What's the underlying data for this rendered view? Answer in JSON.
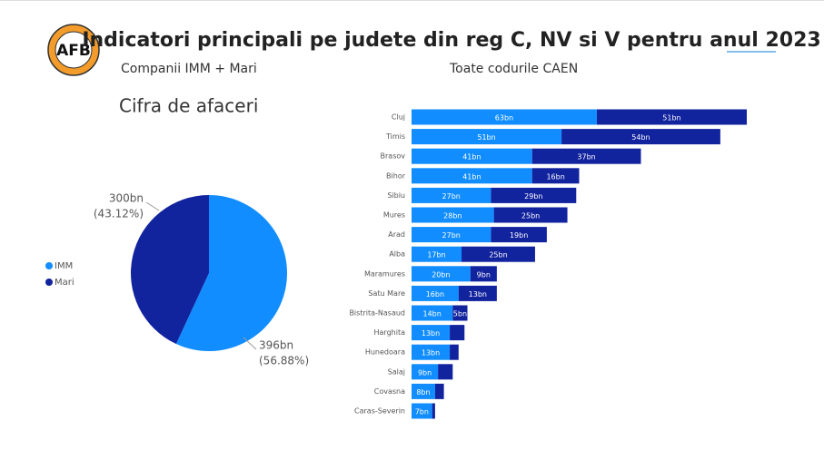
{
  "header": {
    "logo_text": "AFB",
    "title": "Indicatori principali pe judete din reg C, NV si V pentru anul 2023",
    "subtitle_left": "Companii IMM + Mari",
    "subtitle_right": "Toate codurile CAEN"
  },
  "chart_data": [
    {
      "type": "pie",
      "title": "Cifra de afaceri",
      "categories": [
        "IMM",
        "Mari"
      ],
      "colors": [
        "#118dff",
        "#12239e"
      ],
      "values": [
        396,
        300
      ],
      "value_labels": [
        "396bn",
        "300bn"
      ],
      "percents": [
        56.88,
        43.12
      ],
      "percent_labels": [
        "(56.88%)",
        "(43.12%)"
      ],
      "legend": "left"
    },
    {
      "type": "stacked-bar-horizontal",
      "categories": [
        "Cluj",
        "Timis",
        "Brasov",
        "Bihor",
        "Sibiu",
        "Mures",
        "Arad",
        "Alba",
        "Maramures",
        "Satu Mare",
        "Bistrita-Nasaud",
        "Harghita",
        "Hunedoara",
        "Salaj",
        "Covasna",
        "Caras-Severin"
      ],
      "series": [
        {
          "name": "IMM",
          "color": "#118dff",
          "values": [
            63,
            51,
            41,
            41,
            27,
            28,
            27,
            17,
            20,
            16,
            14,
            13,
            13,
            9,
            8,
            7
          ],
          "value_labels": [
            "63bn",
            "51bn",
            "41bn",
            "41bn",
            "27bn",
            "28bn",
            "27bn",
            "17bn",
            "20bn",
            "16bn",
            "14bn",
            "13bn",
            "13bn",
            "9bn",
            "8bn",
            "7bn"
          ]
        },
        {
          "name": "Mari",
          "color": "#12239e",
          "values": [
            51,
            54,
            37,
            16,
            29,
            25,
            19,
            25,
            9,
            13,
            5,
            5,
            3,
            5,
            3,
            1
          ],
          "value_labels": [
            "51bn",
            "54bn",
            "37bn",
            "16bn",
            "29bn",
            "25bn",
            "19bn",
            "25bn",
            "9bn",
            "13bn",
            "5bn",
            null,
            null,
            null,
            null,
            null
          ]
        }
      ]
    }
  ]
}
